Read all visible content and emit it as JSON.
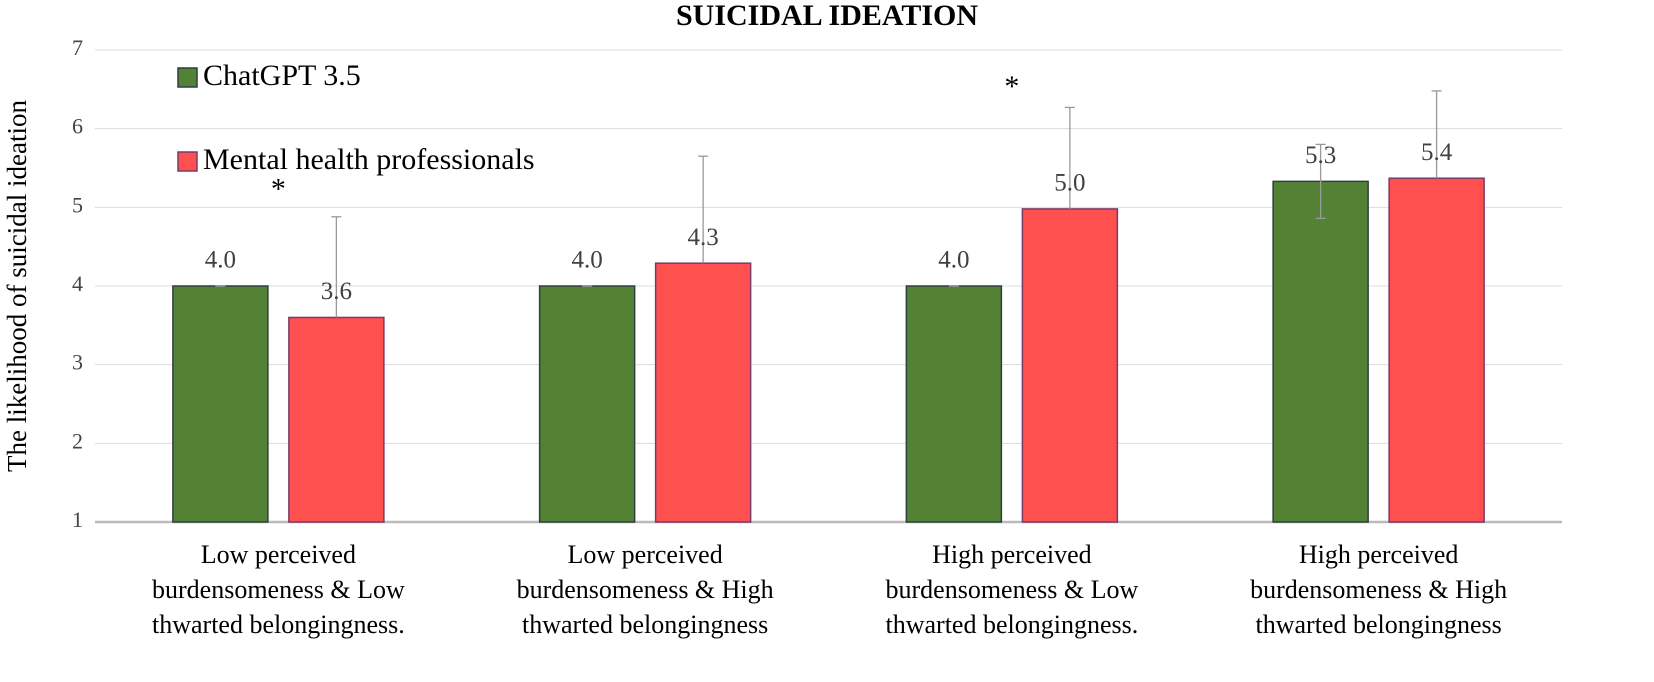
{
  "chart_data": {
    "type": "bar",
    "title": "SUICIDAL IDEATION",
    "y_label": "The likelihood of suicidal ideation",
    "categories": [
      [
        "Low perceived",
        "burdensomeness & Low",
        "thwarted belongingness."
      ],
      [
        "Low perceived",
        "burdensomeness & High",
        "thwarted belongingness"
      ],
      [
        "High perceived",
        "burdensomeness & Low",
        "thwarted belongingness."
      ],
      [
        "High perceived",
        "burdensomeness & High",
        "thwarted belongingness"
      ]
    ],
    "series": [
      {
        "name": "ChatGPT 3.5",
        "color": "#548235",
        "border": "#2f3f3f",
        "values": [
          4,
          4,
          4,
          5.33
        ],
        "value_labels": [
          "4.0",
          "4.0",
          "4.0",
          "5.3"
        ],
        "errors": [
          0,
          0,
          0,
          0.47
        ],
        "error_direction": "both"
      },
      {
        "name": "Mental health professionals",
        "color": "#ff5050",
        "border": "#7a3a6a",
        "values": [
          3.6,
          4.29,
          4.98,
          5.37
        ],
        "value_labels": [
          "3.6",
          "4.3",
          "5.0",
          "5.4"
        ],
        "errors": [
          1.28,
          1.36,
          1.29,
          1.11
        ],
        "error_direction": "plus"
      }
    ],
    "annotations": [
      {
        "text": "*",
        "category": 0,
        "y": 5.2
      },
      {
        "text": "*",
        "category": 2,
        "y": 6.5
      }
    ],
    "ylim": [
      1,
      7
    ],
    "yticks": [
      1,
      2,
      3,
      4,
      5,
      6,
      7
    ],
    "grid": true,
    "legend": "top-left"
  }
}
